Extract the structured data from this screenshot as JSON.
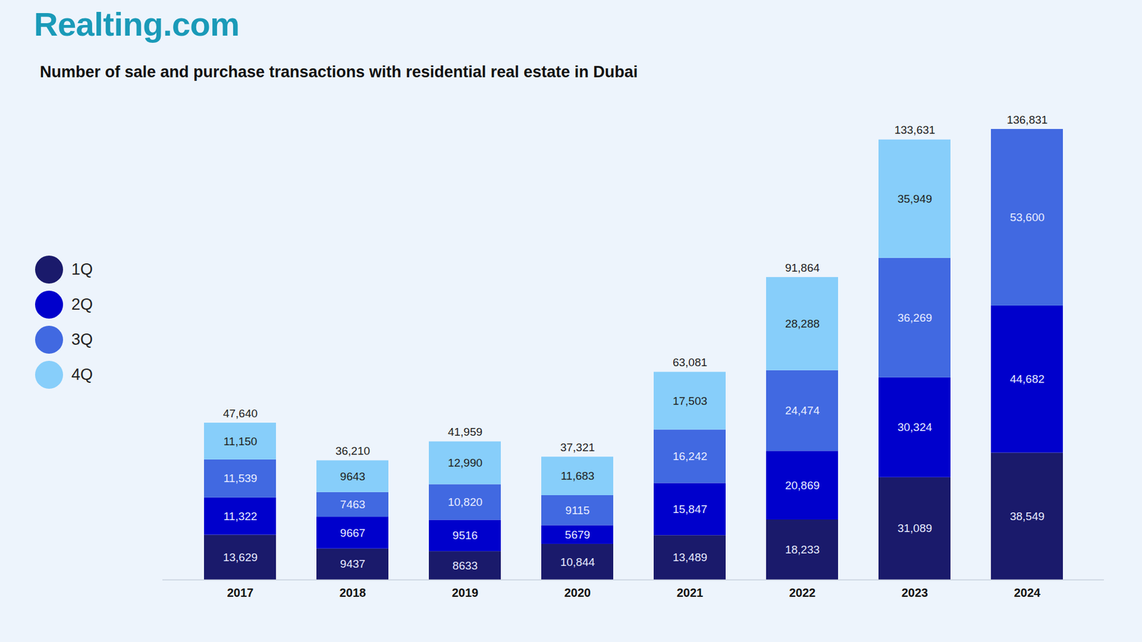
{
  "chart_data": {
    "type": "bar",
    "brand": "Realting.com",
    "title": "Number of sale and purchase transactions with residential real estate in Dubai",
    "categories": [
      "2017",
      "2018",
      "2019",
      "2020",
      "2021",
      "2022",
      "2023",
      "2024"
    ],
    "series": [
      {
        "name": "1Q",
        "color": "#1a1a6b",
        "values": [
          13629,
          9437,
          8633,
          10844,
          13489,
          18233,
          31089,
          38549
        ],
        "value_labels": [
          "13,629",
          "9437",
          "8633",
          "10,844",
          "13,489",
          "18,233",
          "31,089",
          "38,549"
        ]
      },
      {
        "name": "2Q",
        "color": "#0000cc",
        "values": [
          11322,
          9667,
          9516,
          5679,
          15847,
          20869,
          30324,
          44682
        ],
        "value_labels": [
          "11,322",
          "9667",
          "9516",
          "5679",
          "15,847",
          "20,869",
          "30,324",
          "44,682"
        ]
      },
      {
        "name": "3Q",
        "color": "#4169e1",
        "values": [
          11539,
          7463,
          10820,
          9115,
          16242,
          24474,
          36269,
          53600
        ],
        "value_labels": [
          "11,539",
          "7463",
          "10,820",
          "9115",
          "16,242",
          "24,474",
          "36,269",
          "53,600"
        ]
      },
      {
        "name": "4Q",
        "color": "#87cefa",
        "values": [
          11150,
          9643,
          12990,
          11683,
          17503,
          28288,
          35949,
          null
        ],
        "value_labels": [
          "11,150",
          "9643",
          "12,990",
          "11,683",
          "17,503",
          "28,288",
          "35,949",
          null
        ]
      }
    ],
    "totals": [
      47640,
      36210,
      41959,
      37321,
      63081,
      91864,
      133631,
      136831
    ],
    "total_labels": [
      "47,640",
      "36,210",
      "41,959",
      "37,321",
      "63,081",
      "91,864",
      "133,631",
      "136,831"
    ],
    "ylim": [
      0,
      150000
    ],
    "stacked": true,
    "data_labels": true,
    "tick_labels": "x",
    "legend": "left",
    "grid": false
  }
}
